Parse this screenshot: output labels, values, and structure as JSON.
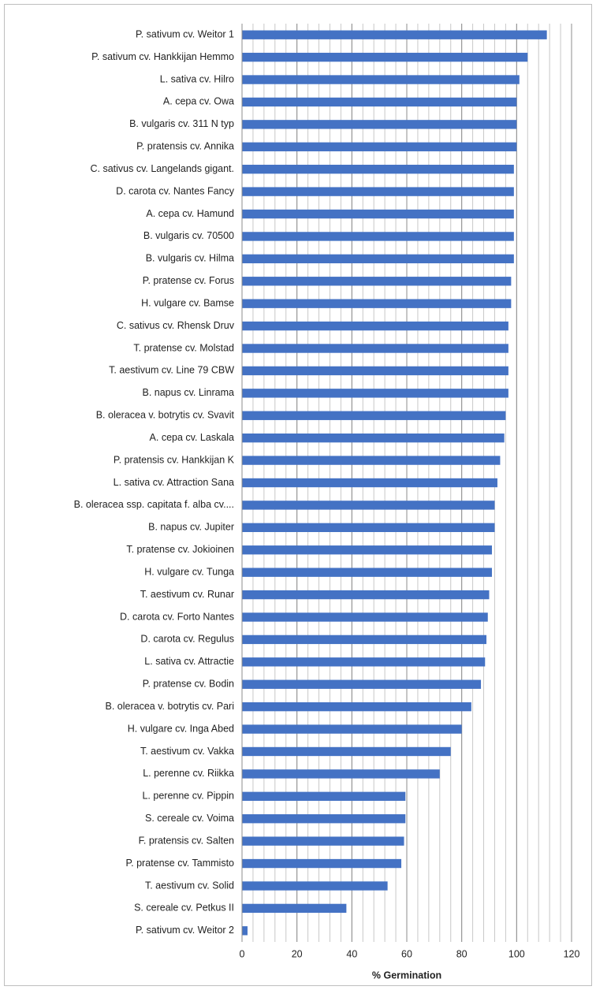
{
  "chart_data": {
    "type": "barh",
    "x_label": "% Germination",
    "categories": [
      "P. sativum cv. Weitor 1",
      "P. sativum cv. Hankkijan Hemmo",
      "L. sativa cv. Hilro",
      "A. cepa cv. Owa",
      "B. vulgaris cv. 311 N typ",
      "P. pratensis cv. Annika",
      "C. sativus cv. Langelands gigant.",
      "D. carota cv. Nantes Fancy",
      "A. cepa cv. Hamund",
      "B. vulgaris cv. 70500",
      "B. vulgaris cv. Hilma",
      "P. pratense cv. Forus",
      "H. vulgare cv. Bamse",
      "C. sativus cv. Rhensk Druv",
      "T. pratense cv. Molstad",
      "T. aestivum cv. Line 79 CBW",
      "B. napus cv. Linrama",
      "B. oleracea v. botrytis cv. Svavit",
      "A. cepa cv. Laskala",
      "P. pratensis cv. Hankkijan K",
      "L. sativa cv. Attraction Sana",
      "B. oleracea ssp. capitata f. alba cv....",
      "B. napus cv. Jupiter",
      "T. pratense cv. Jokioinen",
      "H. vulgare cv. Tunga",
      "T. aestivum cv. Runar",
      "D. carota cv. Forto Nantes",
      "D. carota cv. Regulus",
      "L. sativa cv. Attractie",
      "P. pratense cv. Bodin",
      "B. oleracea v. botrytis cv. Pari",
      "H. vulgare cv. Inga Abed",
      "T. aestivum cv. Vakka",
      "L. perenne cv. Riikka",
      "L. perenne cv. Pippin",
      "S. cereale cv. Voima",
      "F. pratensis cv. Salten",
      "P. pratense cv. Tammisto",
      "T. aestivum cv. Solid",
      "S. cereale cv. Petkus II",
      "P. sativum cv. Weitor 2"
    ],
    "values": [
      111,
      104,
      101,
      100,
      100,
      100,
      99,
      99,
      99,
      99,
      99,
      98,
      98,
      97,
      97,
      97,
      97,
      96,
      95.5,
      94,
      93,
      92,
      92,
      91,
      91,
      90,
      89.5,
      89,
      88.5,
      87,
      83.5,
      80,
      76,
      72,
      59.5,
      59.5,
      59,
      58,
      53,
      38,
      2
    ],
    "color": "#4472c4",
    "xlim": [
      0,
      120
    ],
    "xticks": [
      0,
      20,
      40,
      60,
      80,
      100,
      120
    ],
    "xminorticks": [
      0,
      4,
      8,
      12,
      16,
      20,
      24,
      28,
      32,
      36,
      40,
      44,
      48,
      52,
      56,
      60,
      64,
      68,
      72,
      76,
      80,
      84,
      88,
      92,
      96,
      100,
      104,
      108,
      112,
      116,
      120
    ],
    "grid": true
  }
}
